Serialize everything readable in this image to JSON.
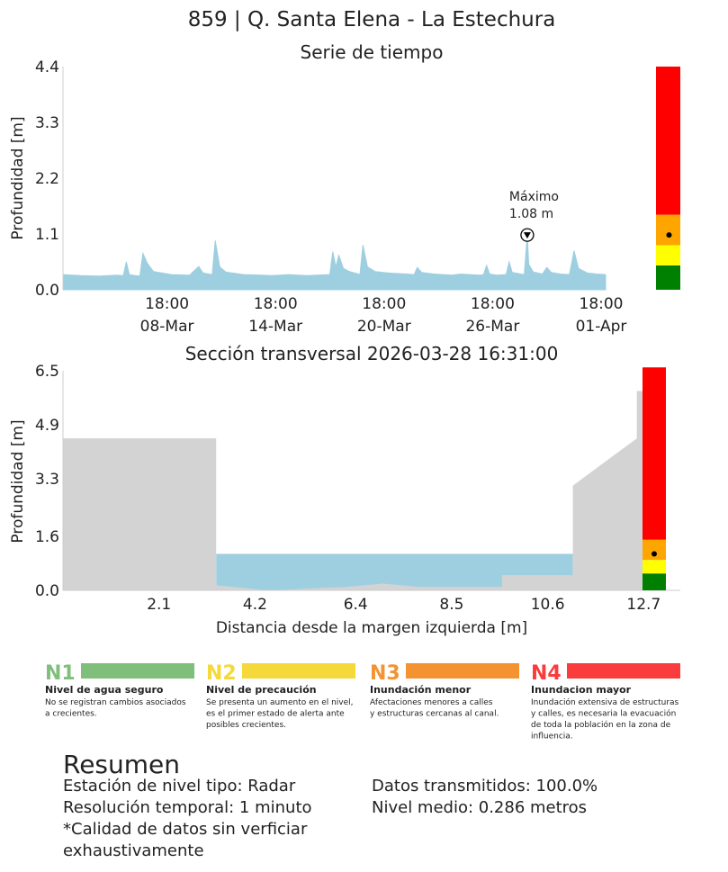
{
  "title": "859 | Q. Santa Elena - La Estechura",
  "chart_data": [
    {
      "type": "area",
      "title": "Serie de tiempo",
      "ylabel": "Profundidad [m]",
      "xlabel": "",
      "ylim": [
        0,
        4.4
      ],
      "yticks": [
        "0.0",
        "1.1",
        "2.2",
        "3.3",
        "4.4"
      ],
      "x_range": [
        "2026-03-03T00:00",
        "2026-04-03T07:00"
      ],
      "xticks": [
        {
          "x": "2026-03-08T18:00",
          "line1": "18:00",
          "line2": "08-Mar"
        },
        {
          "x": "2026-03-14T18:00",
          "line1": "18:00",
          "line2": "14-Mar"
        },
        {
          "x": "2026-03-20T18:00",
          "line1": "18:00",
          "line2": "20-Mar"
        },
        {
          "x": "2026-03-26T18:00",
          "line1": "18:00",
          "line2": "26-Mar"
        },
        {
          "x": "2026-04-01T18:00",
          "line1": "18:00",
          "line2": "01-Apr"
        }
      ],
      "series": [
        {
          "color": "#9ecfe0",
          "points": [
            [
              "2026-03-03T00:00",
              0.3
            ],
            [
              "2026-03-04T00:00",
              0.28
            ],
            [
              "2026-03-05T00:00",
              0.27
            ],
            [
              "2026-03-06T00:00",
              0.29
            ],
            [
              "2026-03-06T08:00",
              0.28
            ],
            [
              "2026-03-06T12:00",
              0.55
            ],
            [
              "2026-03-06T16:00",
              0.3
            ],
            [
              "2026-03-07T00:00",
              0.28
            ],
            [
              "2026-03-07T06:00",
              0.27
            ],
            [
              "2026-03-07T10:00",
              0.72
            ],
            [
              "2026-03-07T16:00",
              0.52
            ],
            [
              "2026-03-08T00:00",
              0.36
            ],
            [
              "2026-03-09T00:00",
              0.3
            ],
            [
              "2026-03-10T00:00",
              0.29
            ],
            [
              "2026-03-10T12:00",
              0.46
            ],
            [
              "2026-03-10T18:00",
              0.33
            ],
            [
              "2026-03-11T06:00",
              0.3
            ],
            [
              "2026-03-11T10:00",
              0.97
            ],
            [
              "2026-03-11T16:00",
              0.45
            ],
            [
              "2026-03-12T00:00",
              0.35
            ],
            [
              "2026-03-13T00:00",
              0.3
            ],
            [
              "2026-03-14T00:00",
              0.29
            ],
            [
              "2026-03-14T12:00",
              0.28
            ],
            [
              "2026-03-15T00:00",
              0.29
            ],
            [
              "2026-03-15T12:00",
              0.3
            ],
            [
              "2026-03-16T00:00",
              0.29
            ],
            [
              "2026-03-16T12:00",
              0.28
            ],
            [
              "2026-03-17T00:00",
              0.29
            ],
            [
              "2026-03-17T18:00",
              0.3
            ],
            [
              "2026-03-17T22:00",
              0.75
            ],
            [
              "2026-03-18T02:00",
              0.45
            ],
            [
              "2026-03-18T06:00",
              0.68
            ],
            [
              "2026-03-18T12:00",
              0.42
            ],
            [
              "2026-03-18T20:00",
              0.36
            ],
            [
              "2026-03-19T06:00",
              0.32
            ],
            [
              "2026-03-19T10:00",
              0.3
            ],
            [
              "2026-03-19T14:00",
              0.88
            ],
            [
              "2026-03-19T20:00",
              0.45
            ],
            [
              "2026-03-20T06:00",
              0.36
            ],
            [
              "2026-03-21T00:00",
              0.33
            ],
            [
              "2026-03-22T00:00",
              0.31
            ],
            [
              "2026-03-22T10:00",
              0.3
            ],
            [
              "2026-03-22T14:00",
              0.44
            ],
            [
              "2026-03-22T20:00",
              0.34
            ],
            [
              "2026-03-23T12:00",
              0.31
            ],
            [
              "2026-03-24T00:00",
              0.3
            ],
            [
              "2026-03-24T12:00",
              0.29
            ],
            [
              "2026-03-25T00:00",
              0.31
            ],
            [
              "2026-03-26T00:00",
              0.29
            ],
            [
              "2026-03-26T06:00",
              0.3
            ],
            [
              "2026-03-26T10:00",
              0.48
            ],
            [
              "2026-03-26T14:00",
              0.31
            ],
            [
              "2026-03-27T00:00",
              0.29
            ],
            [
              "2026-03-27T12:00",
              0.3
            ],
            [
              "2026-03-27T16:00",
              0.55
            ],
            [
              "2026-03-27T20:00",
              0.34
            ],
            [
              "2026-03-28T12:00",
              0.3
            ],
            [
              "2026-03-28T16:00",
              1.08
            ],
            [
              "2026-03-28T18:00",
              0.5
            ],
            [
              "2026-03-29T00:00",
              0.35
            ],
            [
              "2026-03-29T12:00",
              0.31
            ],
            [
              "2026-03-29T18:00",
              0.44
            ],
            [
              "2026-03-30T00:00",
              0.34
            ],
            [
              "2026-03-30T12:00",
              0.31
            ],
            [
              "2026-03-31T00:00",
              0.3
            ],
            [
              "2026-03-31T06:00",
              0.77
            ],
            [
              "2026-03-31T12:00",
              0.42
            ],
            [
              "2026-04-01T00:00",
              0.33
            ],
            [
              "2026-04-01T12:00",
              0.31
            ],
            [
              "2026-04-02T00:00",
              0.3
            ]
          ]
        }
      ],
      "annotation": {
        "label_line1": "Máximo",
        "label_line2": "1.08 m",
        "x": "2026-03-28T16:00",
        "y": 1.08
      },
      "threshold_bar": {
        "levels": [
          {
            "from": 0,
            "to": 0.48,
            "color": "#008000"
          },
          {
            "from": 0.48,
            "to": 0.88,
            "color": "#ffff00"
          },
          {
            "from": 0.88,
            "to": 1.48,
            "color": "#ffa500"
          },
          {
            "from": 1.48,
            "to": 4.4,
            "color": "#ff0000"
          }
        ],
        "marker": 1.08
      }
    },
    {
      "type": "area",
      "title": "Sección transversal 2026-03-28 16:31:00",
      "ylabel": "Profundidad [m]",
      "xlabel": "Distancia desde la margen izquierda [m]",
      "xlim": [
        0,
        13.5
      ],
      "ylim": [
        0,
        6.5
      ],
      "xticks": [
        "2.1",
        "4.2",
        "6.4",
        "8.5",
        "10.6",
        "12.7"
      ],
      "xtick_values": [
        2.1,
        4.2,
        6.4,
        8.5,
        10.6,
        12.7
      ],
      "yticks": [
        "0.0",
        "1.6",
        "3.3",
        "4.9",
        "6.5"
      ],
      "ytick_values": [
        0,
        1.6,
        3.3,
        4.9,
        6.5
      ],
      "water_level": 1.08,
      "water_x": [
        3.35,
        11.15
      ],
      "terrain": [
        [
          0,
          4.5
        ],
        [
          3.35,
          4.5
        ],
        [
          3.35,
          0.15
        ],
        [
          4.5,
          0
        ],
        [
          6.2,
          0.1
        ],
        [
          7.0,
          0.2
        ],
        [
          7.8,
          0.1
        ],
        [
          9.6,
          0.1
        ],
        [
          9.6,
          0.45
        ],
        [
          11.15,
          0.45
        ],
        [
          11.15,
          3.1
        ],
        [
          12.55,
          4.5
        ],
        [
          12.55,
          5.9
        ],
        [
          12.8,
          5.9
        ],
        [
          12.8,
          0
        ]
      ],
      "threshold_bar": {
        "levels": [
          {
            "from": 0,
            "to": 0.5,
            "color": "#008000"
          },
          {
            "from": 0.5,
            "to": 0.9,
            "color": "#ffff00"
          },
          {
            "from": 0.9,
            "to": 1.5,
            "color": "#ffa500"
          },
          {
            "from": 1.5,
            "to": 6.6,
            "color": "#ff0000"
          }
        ],
        "marker": 1.08
      }
    }
  ],
  "legend": [
    {
      "code": "N1",
      "color": "#7fbf7b",
      "code_color": "#7fbf7b",
      "title": "Nivel de agua seguro",
      "desc": [
        "No se registran cambios asociados",
        "a crecientes."
      ]
    },
    {
      "code": "N2",
      "color": "#f5d93b",
      "code_color": "#f5d93b",
      "title": "Nivel de precaución",
      "desc": [
        "Se presenta un aumento en el nivel,",
        "es el primer estado de alerta ante",
        "posibles crecientes."
      ]
    },
    {
      "code": "N3",
      "color": "#f39331",
      "code_color": "#f39331",
      "title": "Inundación menor",
      "desc": [
        "Afectaciones menores a calles",
        "y estructuras cercanas al canal."
      ]
    },
    {
      "code": "N4",
      "color": "#fb3c3c",
      "code_color": "#fb3c3c",
      "title": "Inundacion mayor",
      "desc": [
        "Inundación extensiva de estructuras",
        "y calles, es necesaria la evacuación",
        "de toda la población en la zona de",
        "influencia."
      ]
    }
  ],
  "summary": {
    "heading": "Resumen",
    "left": [
      "Estación de nivel tipo: Radar",
      "Resolución temporal: 1 minuto",
      "*Calidad de datos sin verficiar",
      "exhaustivamente"
    ],
    "right": [
      "Datos transmitidos: 100.0%",
      "Nivel medio: 0.286 metros"
    ]
  }
}
